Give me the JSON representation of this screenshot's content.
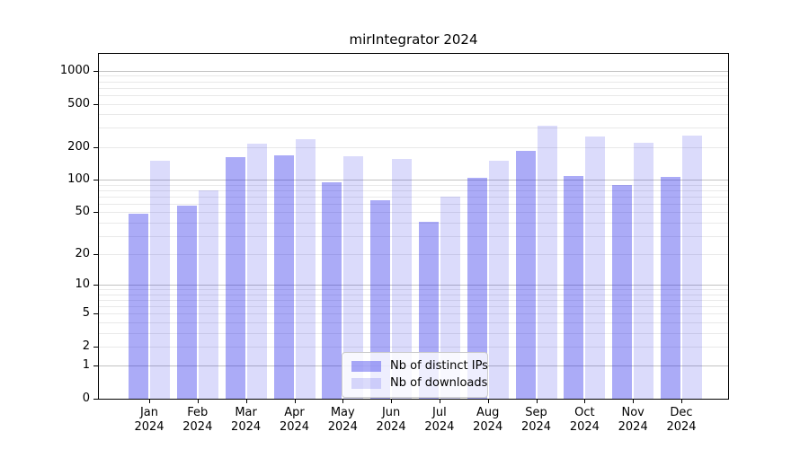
{
  "title": "mirIntegrator 2024",
  "colors": {
    "ips": "rgba(28,28,232,0.37)",
    "downloads": "rgba(28,28,232,0.16)",
    "grid_major": "#c2c2c2",
    "grid_minor": "#e9e9e9",
    "axis": "#000000",
    "legend_border": "#cccccc"
  },
  "legend": {
    "items": [
      {
        "label": "Nb of distinct IPs",
        "color_key": "ips"
      },
      {
        "label": "Nb of downloads",
        "color_key": "downloads"
      }
    ]
  },
  "chart_data": {
    "type": "bar",
    "title": "mirIntegrator 2024",
    "categories": [
      "Jan 2024",
      "Feb 2024",
      "Mar 2024",
      "Apr 2024",
      "May 2024",
      "Jun 2024",
      "Jul 2024",
      "Aug 2024",
      "Sep 2024",
      "Oct 2024",
      "Nov 2024",
      "Dec 2024"
    ],
    "series": [
      {
        "name": "Nb of distinct IPs",
        "color_key": "ips",
        "values": [
          48,
          58,
          163,
          167,
          95,
          64,
          41,
          105,
          183,
          108,
          89,
          106
        ]
      },
      {
        "name": "Nb of downloads",
        "color_key": "downloads",
        "values": [
          150,
          79,
          215,
          236,
          165,
          155,
          70,
          150,
          312,
          252,
          217,
          253
        ]
      }
    ],
    "xlabel": "",
    "ylabel": "",
    "yscale": "log10(value+1)",
    "yticks": [
      0,
      1,
      2,
      5,
      10,
      20,
      50,
      100,
      200,
      500,
      1000
    ],
    "ylim": [
      0,
      1430
    ],
    "grid": {
      "major": [
        1,
        10,
        100,
        1000
      ],
      "minor": [
        2,
        3,
        4,
        5,
        6,
        7,
        8,
        9,
        20,
        30,
        40,
        50,
        60,
        70,
        80,
        90,
        200,
        300,
        400,
        500,
        600,
        700,
        800,
        900
      ]
    },
    "legend_position": "lower-center",
    "grid_on": true
  }
}
